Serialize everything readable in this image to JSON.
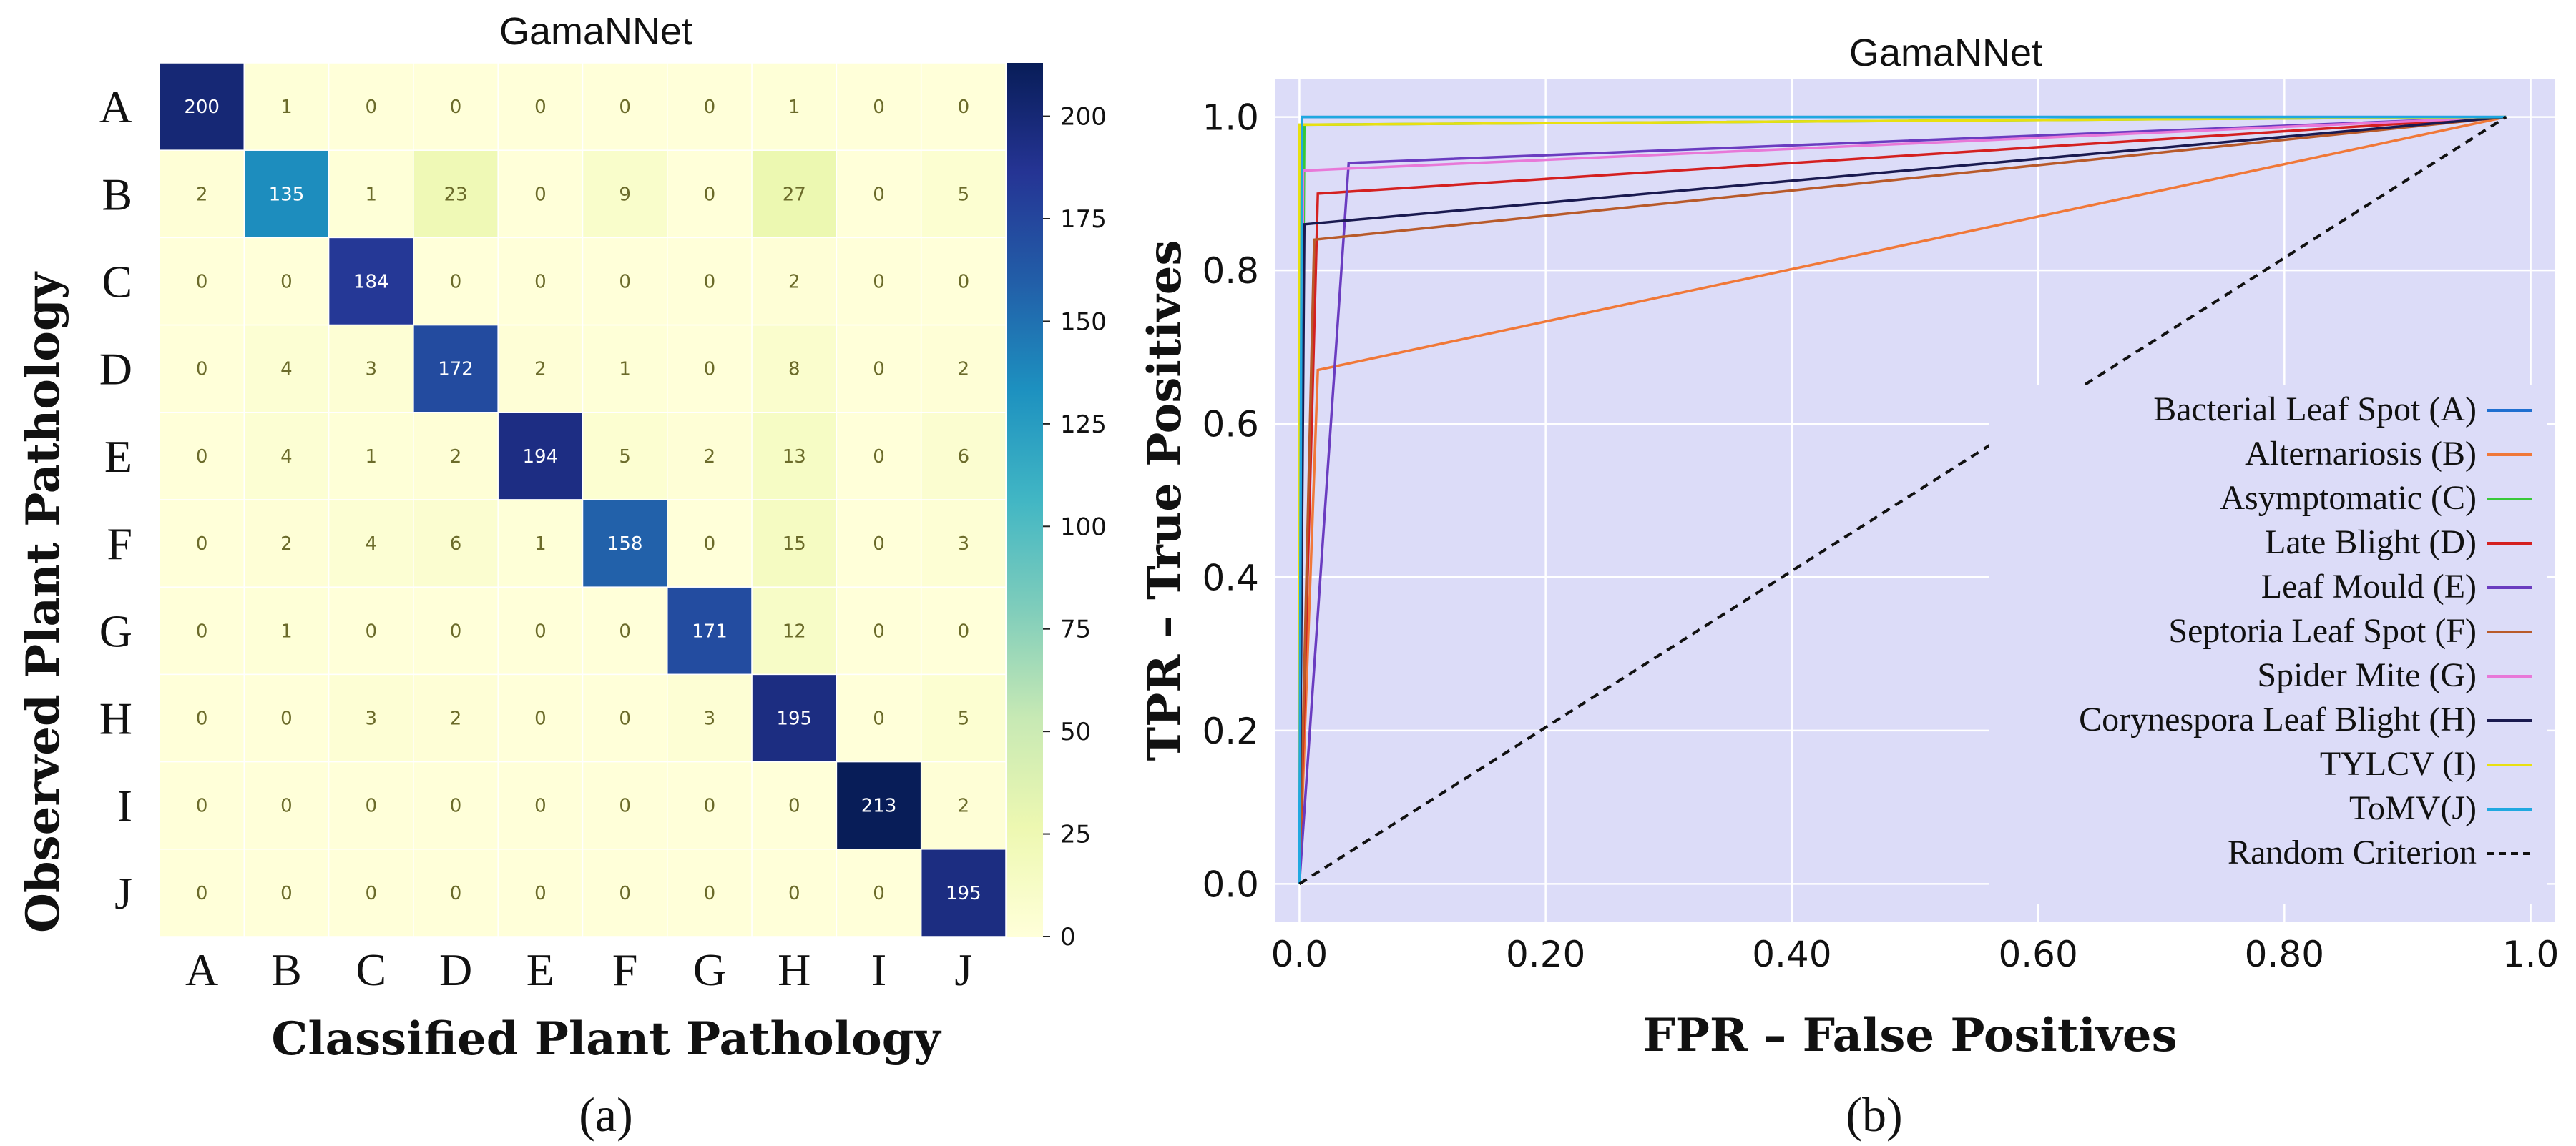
{
  "chart_data": [
    {
      "type": "heatmap",
      "panel_label": "(a)",
      "title": "GamaNNet",
      "xlabel": "Classified Plant Pathology",
      "ylabel": "Observed Plant Pathology",
      "row_labels": [
        "A",
        "B",
        "C",
        "D",
        "E",
        "F",
        "G",
        "H",
        "I",
        "J"
      ],
      "col_labels": [
        "A",
        "B",
        "C",
        "D",
        "E",
        "F",
        "G",
        "H",
        "I",
        "J"
      ],
      "matrix": [
        [
          200,
          1,
          0,
          0,
          0,
          0,
          0,
          1,
          0,
          0
        ],
        [
          2,
          135,
          1,
          23,
          0,
          9,
          0,
          27,
          0,
          5
        ],
        [
          0,
          0,
          184,
          0,
          0,
          0,
          0,
          2,
          0,
          0
        ],
        [
          0,
          4,
          3,
          172,
          2,
          1,
          0,
          8,
          0,
          2
        ],
        [
          0,
          4,
          1,
          2,
          194,
          5,
          2,
          13,
          0,
          6
        ],
        [
          0,
          2,
          4,
          6,
          1,
          158,
          0,
          15,
          0,
          3
        ],
        [
          0,
          1,
          0,
          0,
          0,
          0,
          171,
          12,
          0,
          0
        ],
        [
          0,
          0,
          3,
          2,
          0,
          0,
          3,
          195,
          0,
          5
        ],
        [
          0,
          0,
          0,
          0,
          0,
          0,
          0,
          0,
          213,
          2
        ],
        [
          0,
          0,
          0,
          0,
          0,
          0,
          0,
          0,
          0,
          195
        ]
      ],
      "colorbar": {
        "colormap": "YlGnBu",
        "range": [
          0,
          213
        ],
        "ticks": [
          0,
          25,
          50,
          75,
          100,
          125,
          150,
          175,
          200
        ]
      }
    },
    {
      "type": "line",
      "panel_label": "(b)",
      "title": "GamaNNet",
      "xlabel": "FPR – False Positives",
      "ylabel": "TPR – True Positives",
      "xlim": [
        -0.02,
        1.02
      ],
      "ylim": [
        -0.05,
        1.05
      ],
      "x_ticks": [
        0.0,
        0.2,
        0.4,
        0.6,
        0.8,
        1.0
      ],
      "x_tick_labels": [
        "0.0",
        "0.20",
        "0.40",
        "0.60",
        "0.80",
        "1.0"
      ],
      "y_ticks": [
        0.0,
        0.2,
        0.4,
        0.6,
        0.8,
        1.0
      ],
      "y_tick_labels": [
        "0.0",
        "0.2",
        "0.4",
        "0.6",
        "0.8",
        "1.0"
      ],
      "legend_position": "lower-right",
      "series": [
        {
          "name": "Bacterial Leaf Spot (A)",
          "color": "#1f6fd0",
          "x": [
            0,
            0.002,
            0.98
          ],
          "y": [
            0,
            1.0,
            1.0
          ]
        },
        {
          "name": "Alternariosis (B)",
          "color": "#f07838",
          "x": [
            0,
            0.015,
            0.98
          ],
          "y": [
            0,
            0.67,
            1.0
          ]
        },
        {
          "name": "Asymptomatic (C)",
          "color": "#38c838",
          "x": [
            0,
            0.004,
            0.98
          ],
          "y": [
            0,
            0.99,
            1.0
          ]
        },
        {
          "name": "Late Blight (D)",
          "color": "#d42020",
          "x": [
            0,
            0.015,
            0.98
          ],
          "y": [
            0,
            0.9,
            1.0
          ]
        },
        {
          "name": "Leaf Mould (E)",
          "color": "#6a3cc0",
          "x": [
            0,
            0.04,
            0.98
          ],
          "y": [
            0,
            0.94,
            1.0
          ]
        },
        {
          "name": "Septoria Leaf Spot (F)",
          "color": "#b85a2a",
          "x": [
            0,
            0.012,
            0.98
          ],
          "y": [
            0,
            0.84,
            1.0
          ]
        },
        {
          "name": "Spider Mite (G)",
          "color": "#e878d8",
          "x": [
            0,
            0.003,
            0.98
          ],
          "y": [
            0,
            0.93,
            1.0
          ]
        },
        {
          "name": "Corynespora Leaf Blight (H)",
          "color": "#1a1a50",
          "x": [
            0,
            0.004,
            0.98
          ],
          "y": [
            0,
            0.86,
            1.0
          ]
        },
        {
          "name": "TYLCV (I)",
          "color": "#e8e010",
          "x": [
            0,
            0.0,
            0.98
          ],
          "y": [
            0,
            0.99,
            1.0
          ]
        },
        {
          "name": "ToMV(J)",
          "color": "#20a8e0",
          "x": [
            0,
            0.002,
            0.98
          ],
          "y": [
            0,
            1.0,
            1.0
          ]
        },
        {
          "name": "Random Criterion",
          "color": "#111111",
          "dashed": true,
          "x": [
            0,
            0.98
          ],
          "y": [
            0,
            1.0
          ]
        }
      ]
    }
  ]
}
